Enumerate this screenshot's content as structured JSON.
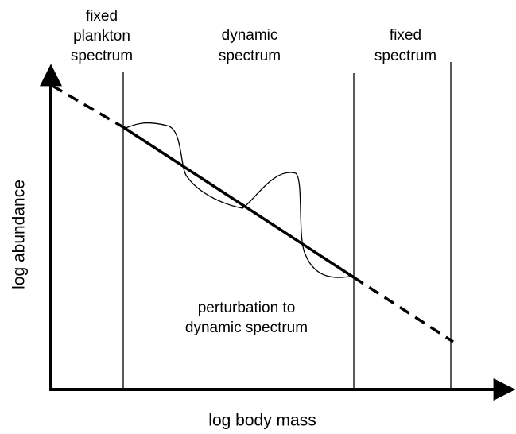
{
  "regions": [
    {
      "label": [
        "fixed",
        "plankton",
        "spectrum"
      ]
    },
    {
      "label": [
        "dynamic",
        "spectrum"
      ]
    },
    {
      "label": [
        "fixed",
        "spectrum"
      ]
    }
  ],
  "perturbation_label": [
    "perturbation to",
    "dynamic spectrum"
  ],
  "y_axis_label": "log abundance",
  "x_axis_label": "log body mass"
}
